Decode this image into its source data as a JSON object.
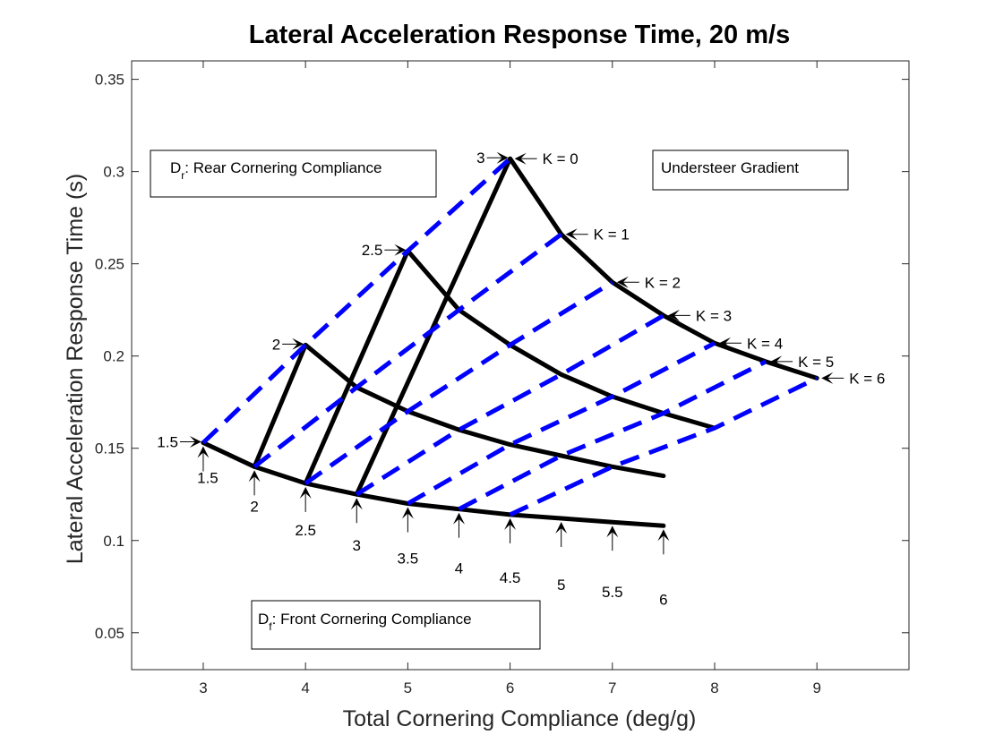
{
  "chart_data": {
    "type": "line",
    "title": "Lateral Acceleration Response Time, 20 m/s",
    "xlabel": "Total Cornering Compliance (deg/g)",
    "ylabel": "Lateral Acceleration Response Time (s)",
    "xlim": [
      2.3,
      9.9
    ],
    "ylim": [
      0.03,
      0.36
    ],
    "xticks": [
      3,
      4,
      5,
      6,
      7,
      8,
      9
    ],
    "yticks": [
      0.05,
      0.1,
      0.15,
      0.2,
      0.25,
      0.3,
      0.35
    ],
    "ytick_labels": [
      "0.05",
      "0.1",
      "0.15",
      "0.2",
      "0.25",
      "0.3",
      "0.35"
    ],
    "grid": false,
    "constant_front_curves": [
      {
        "label": "1.5",
        "points": [
          [
            3.0,
            0.153
          ],
          [
            3.5,
            0.14
          ],
          [
            4.0,
            0.131
          ],
          [
            4.5,
            0.125
          ],
          [
            5.0,
            0.12
          ],
          [
            5.5,
            0.117
          ],
          [
            6.0,
            0.114
          ],
          [
            6.5,
            0.112
          ],
          [
            7.0,
            0.11
          ],
          [
            7.5,
            0.108
          ]
        ]
      },
      {
        "label": "2",
        "points": [
          [
            3.5,
            0.14
          ],
          [
            4.0,
            0.206
          ],
          [
            4.5,
            0.183
          ],
          [
            5.0,
            0.17
          ],
          [
            5.5,
            0.16
          ],
          [
            6.0,
            0.152
          ],
          [
            6.5,
            0.146
          ],
          [
            7.0,
            0.14
          ],
          [
            7.5,
            0.135
          ]
        ]
      },
      {
        "label": "2.5",
        "points": [
          [
            4.0,
            0.131
          ],
          [
            5.0,
            0.257
          ],
          [
            5.5,
            0.225
          ],
          [
            6.0,
            0.206
          ],
          [
            6.5,
            0.19
          ],
          [
            7.0,
            0.178
          ],
          [
            7.5,
            0.169
          ],
          [
            8.0,
            0.161
          ]
        ]
      },
      {
        "label": "3",
        "points": [
          [
            4.5,
            0.125
          ],
          [
            6.0,
            0.307
          ],
          [
            6.5,
            0.266
          ],
          [
            7.0,
            0.24
          ],
          [
            7.5,
            0.222
          ],
          [
            8.0,
            0.207
          ],
          [
            8.5,
            0.197
          ],
          [
            9.0,
            0.188
          ]
        ]
      }
    ],
    "constant_understeer_lines": [
      {
        "label": "K = 0",
        "points": [
          [
            3.0,
            0.153
          ],
          [
            4.0,
            0.206
          ],
          [
            5.0,
            0.257
          ],
          [
            6.0,
            0.307
          ]
        ]
      },
      {
        "label": "K = 1",
        "points": [
          [
            3.5,
            0.14
          ],
          [
            4.5,
            0.183
          ],
          [
            5.5,
            0.225
          ],
          [
            6.5,
            0.266
          ]
        ]
      },
      {
        "label": "K = 2",
        "points": [
          [
            4.0,
            0.131
          ],
          [
            5.0,
            0.17
          ],
          [
            6.0,
            0.206
          ],
          [
            7.0,
            0.24
          ]
        ]
      },
      {
        "label": "K = 3",
        "points": [
          [
            4.5,
            0.125
          ],
          [
            5.5,
            0.16
          ],
          [
            6.5,
            0.19
          ],
          [
            7.5,
            0.222
          ]
        ]
      },
      {
        "label": "K = 4",
        "points": [
          [
            5.0,
            0.12
          ],
          [
            6.0,
            0.152
          ],
          [
            7.0,
            0.178
          ],
          [
            8.0,
            0.207
          ]
        ]
      },
      {
        "label": "K = 5",
        "points": [
          [
            5.5,
            0.117
          ],
          [
            6.5,
            0.146
          ],
          [
            7.5,
            0.169
          ],
          [
            8.5,
            0.197
          ]
        ]
      },
      {
        "label": "K = 6",
        "points": [
          [
            6.0,
            0.114
          ],
          [
            7.0,
            0.14
          ],
          [
            8.0,
            0.161
          ],
          [
            9.0,
            0.188
          ]
        ]
      }
    ],
    "line_colors": {
      "front": "#000000",
      "rear": "#0000ff"
    },
    "front_compliance_labels": [
      "1.5",
      "2",
      "2.5",
      "3",
      "3.5",
      "4",
      "4.5",
      "5",
      "5.5",
      "6"
    ],
    "rear_compliance_labels": [
      "1.5",
      "2",
      "2.5",
      "3"
    ],
    "annotations": {
      "rear_box": "D_r: Rear Cornering Compliance",
      "understeer_box": "Understeer Gradient",
      "front_box": "D_f: Front Cornering Compliance"
    }
  }
}
